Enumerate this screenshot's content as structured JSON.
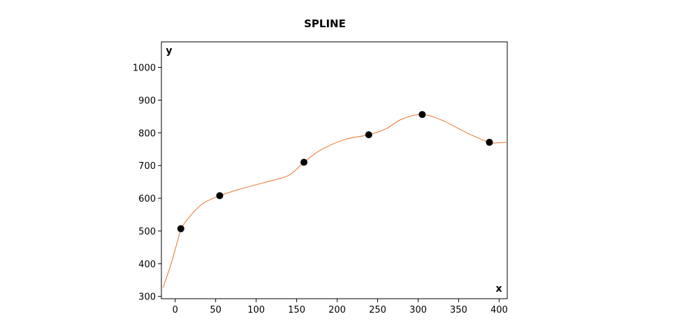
{
  "chart_data": {
    "type": "line",
    "title": "SPLINE",
    "xlabel": "x",
    "ylabel": "y",
    "xlim": [
      -17,
      410
    ],
    "ylim": [
      293,
      1078
    ],
    "x_ticks": [
      0,
      50,
      100,
      150,
      200,
      250,
      300,
      350,
      400
    ],
    "y_ticks": [
      300,
      400,
      500,
      600,
      700,
      800,
      900,
      1000
    ],
    "grid": false,
    "legend": "none",
    "series": [
      {
        "kind": "points",
        "color": "#000000",
        "points": [
          [
            7,
            507
          ],
          [
            55,
            608
          ],
          [
            159,
            710
          ],
          [
            239,
            794
          ],
          [
            305,
            856
          ],
          [
            388,
            771
          ]
        ]
      },
      {
        "kind": "spline",
        "color": "#e8722a",
        "points": [
          [
            -15,
            327
          ],
          [
            -5,
            400
          ],
          [
            5,
            488
          ],
          [
            7,
            507
          ],
          [
            20,
            550
          ],
          [
            35,
            585
          ],
          [
            55,
            608
          ],
          [
            80,
            628
          ],
          [
            110,
            648
          ],
          [
            140,
            670
          ],
          [
            159,
            710
          ],
          [
            180,
            748
          ],
          [
            210,
            780
          ],
          [
            239,
            794
          ],
          [
            260,
            812
          ],
          [
            280,
            842
          ],
          [
            305,
            856
          ],
          [
            330,
            838
          ],
          [
            360,
            800
          ],
          [
            388,
            771
          ],
          [
            400,
            770
          ],
          [
            410,
            771
          ]
        ]
      }
    ]
  }
}
